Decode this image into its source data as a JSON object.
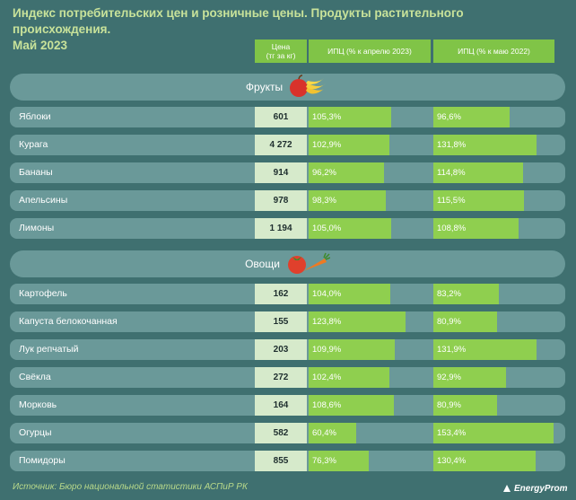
{
  "title": "Индекс потребительских цен и розничные цены. Продукты растительного происхождения.\nМай 2023",
  "headers": {
    "price_line1": "Цена",
    "price_line2": "(тг за кг)",
    "apr": "ИПЦ (% к апрелю 2023)",
    "may": "ИПЦ (% к маю 2022)"
  },
  "sections": [
    {
      "label": "Фрукты",
      "icon": "fruits-icon"
    },
    {
      "label": "Овощи",
      "icon": "vegetables-icon"
    }
  ],
  "colors": {
    "background": "#3f7070",
    "row": "#6a9999",
    "bar": "#8fcf4f",
    "header": "#80c447",
    "title": "#c8e29a",
    "price_cell": "#d6eacb"
  },
  "chart_data": {
    "type": "bar",
    "title": "Индекс потребительских цен и розничные цены. Продукты растительного происхождения. Май 2023",
    "categories": [
      "Яблоки",
      "Курага",
      "Бананы",
      "Апельсины",
      "Лимоны",
      "Картофель",
      "Капуста белокочанная",
      "Лук репчатый",
      "Свёкла",
      "Морковь",
      "Огурцы",
      "Помидоры"
    ],
    "groups": [
      {
        "label": "Фрукты",
        "categories": [
          "Яблоки",
          "Курага",
          "Бананы",
          "Апельсины",
          "Лимоны"
        ]
      },
      {
        "label": "Овощи",
        "categories": [
          "Картофель",
          "Капуста белокочанная",
          "Лук репчатый",
          "Свёкла",
          "Морковь",
          "Огурцы",
          "Помидоры"
        ]
      }
    ],
    "price_labels": [
      "601",
      "4 272",
      "914",
      "978",
      "1 194",
      "162",
      "155",
      "203",
      "272",
      "164",
      "582",
      "855"
    ],
    "series": [
      {
        "name": "ИПЦ (% к апрелю 2023)",
        "values": [
          105.3,
          102.9,
          96.2,
          98.3,
          105.0,
          104.0,
          123.8,
          109.9,
          102.4,
          108.6,
          60.4,
          76.3
        ],
        "labels": [
          "105,3%",
          "102,9%",
          "96,2%",
          "98,3%",
          "105,0%",
          "104,0%",
          "123,8%",
          "109,9%",
          "102,4%",
          "108,6%",
          "60,4%",
          "76,3%"
        ]
      },
      {
        "name": "ИПЦ (% к маю 2022)",
        "values": [
          96.6,
          131.8,
          114.8,
          115.5,
          108.8,
          83.2,
          80.9,
          131.9,
          92.9,
          80.9,
          153.4,
          130.4
        ],
        "labels": [
          "96,6%",
          "131,8%",
          "114,8%",
          "115,5%",
          "108,8%",
          "83,2%",
          "80,9%",
          "131,9%",
          "92,9%",
          "80,9%",
          "153,4%",
          "130,4%"
        ]
      }
    ]
  },
  "footer": {
    "source": "Источник: Бюро национальной статистики АСПиР РК",
    "brand": "EnergyProm"
  }
}
